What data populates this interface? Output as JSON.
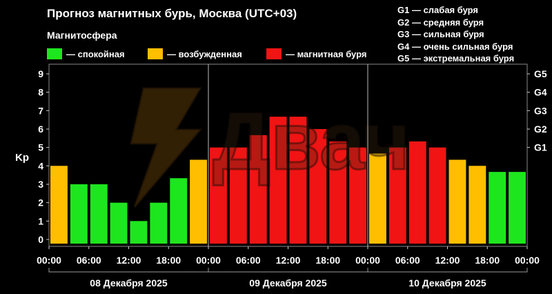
{
  "header": {
    "title": "Прогноз магнитных бурь, Москва (UTC+03)",
    "subtitle": "Магнитосфера"
  },
  "legend": [
    {
      "label": "— спокойная",
      "color": "#1ee61e"
    },
    {
      "label": "— возбужденная",
      "color": "#ffbe00"
    },
    {
      "label": "— магнитная буря",
      "color": "#f01414"
    }
  ],
  "storm_levels": [
    "G1 — слабая буря",
    "G2 — средняя буря",
    "G3 — сильная буря",
    "G4 — очень сильная буря",
    "G5 — экстремальная буря"
  ],
  "chart_data": {
    "type": "bar",
    "ylabel": "Kp",
    "ylim": [
      0,
      9
    ],
    "yticks": [
      "0",
      "1",
      "2",
      "3",
      "4",
      "5",
      "6",
      "7",
      "8",
      "9"
    ],
    "right_ticks": [
      {
        "kp": 5,
        "label": "G1"
      },
      {
        "kp": 6,
        "label": "G2"
      },
      {
        "kp": 7,
        "label": "G3"
      },
      {
        "kp": 8,
        "label": "G4"
      },
      {
        "kp": 9,
        "label": "G5"
      }
    ],
    "x_tick_labels": [
      "00:00",
      "06:00",
      "12:00",
      "18:00",
      "00:00",
      "06:00",
      "12:00",
      "18:00",
      "00:00",
      "06:00",
      "12:00",
      "18:00",
      "00:00"
    ],
    "days": [
      "08 Декабря 2025",
      "09 Декабря 2025",
      "10 Декабря 2025"
    ],
    "bar_interval_hours": 3,
    "values": [
      4,
      3,
      3,
      2,
      1,
      2,
      3.33,
      4.33,
      5,
      5,
      5.67,
      6.67,
      6.67,
      6,
      5.33,
      5,
      4.67,
      5,
      5.33,
      5,
      4.33,
      4,
      3.67,
      3.67
    ],
    "levels": [
      "excited",
      "calm",
      "calm",
      "calm",
      "calm",
      "calm",
      "calm",
      "excited",
      "storm",
      "storm",
      "storm",
      "storm",
      "storm",
      "storm",
      "storm",
      "storm",
      "excited",
      "storm",
      "storm",
      "storm",
      "excited",
      "excited",
      "calm",
      "calm"
    ],
    "level_colors": {
      "calm": "#1ee61e",
      "excited": "#ffbe00",
      "storm": "#f01414"
    },
    "grid": false,
    "watermark_text": "Двач"
  }
}
